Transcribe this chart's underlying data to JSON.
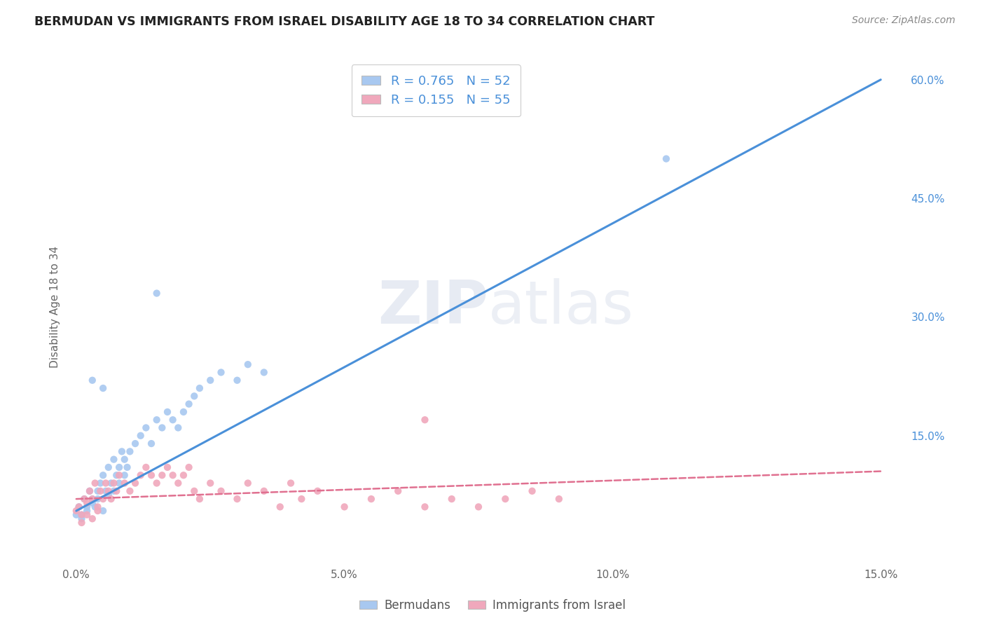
{
  "title": "BERMUDAN VS IMMIGRANTS FROM ISRAEL DISABILITY AGE 18 TO 34 CORRELATION CHART",
  "source": "Source: ZipAtlas.com",
  "ylabel": "Disability Age 18 to 34",
  "legend1_label": "R = 0.765   N = 52",
  "legend2_label": "R = 0.155   N = 55",
  "blue_color": "#A8C8F0",
  "pink_color": "#F0A8BC",
  "blue_line_color": "#4A90D9",
  "pink_line_color": "#E07090",
  "watermark": "ZIPatlas",
  "xlim": [
    -0.15,
    15.5
  ],
  "ylim": [
    -1.5,
    64.0
  ],
  "blue_line_x0": 0.0,
  "blue_line_y0": 5.5,
  "blue_line_x1": 15.0,
  "blue_line_y1": 60.0,
  "pink_line_x0": 0.0,
  "pink_line_y0": 7.0,
  "pink_line_x1": 15.0,
  "pink_line_y1": 10.5,
  "bermudans_x": [
    0.05,
    0.1,
    0.15,
    0.2,
    0.25,
    0.3,
    0.35,
    0.4,
    0.45,
    0.5,
    0.55,
    0.6,
    0.65,
    0.7,
    0.75,
    0.8,
    0.85,
    0.9,
    0.95,
    1.0,
    1.1,
    1.2,
    1.3,
    1.4,
    1.5,
    1.6,
    1.7,
    1.8,
    1.9,
    2.0,
    2.1,
    2.2,
    2.3,
    2.5,
    2.7,
    3.0,
    3.2,
    3.5,
    0.0,
    0.1,
    0.2,
    0.3,
    0.4,
    0.5,
    0.6,
    0.7,
    0.8,
    0.9,
    0.5,
    0.3,
    1.5,
    11.0
  ],
  "bermudans_y": [
    6.0,
    5.0,
    7.0,
    6.0,
    8.0,
    7.0,
    6.0,
    8.0,
    9.0,
    10.0,
    8.0,
    11.0,
    9.0,
    12.0,
    10.0,
    11.0,
    13.0,
    12.0,
    11.0,
    13.0,
    14.0,
    15.0,
    16.0,
    14.0,
    17.0,
    16.0,
    18.0,
    17.0,
    16.0,
    18.0,
    19.0,
    20.0,
    21.0,
    22.0,
    23.0,
    22.0,
    24.0,
    23.0,
    5.0,
    4.5,
    5.5,
    6.5,
    7.0,
    5.5,
    7.5,
    8.0,
    9.0,
    10.0,
    21.0,
    22.0,
    33.0,
    50.0
  ],
  "israel_x": [
    0.0,
    0.05,
    0.1,
    0.15,
    0.2,
    0.25,
    0.3,
    0.35,
    0.4,
    0.45,
    0.5,
    0.55,
    0.6,
    0.65,
    0.7,
    0.75,
    0.8,
    0.9,
    1.0,
    1.1,
    1.2,
    1.3,
    1.4,
    1.5,
    1.6,
    1.7,
    1.8,
    1.9,
    2.0,
    2.1,
    2.2,
    2.3,
    2.5,
    2.7,
    3.0,
    3.2,
    3.5,
    3.8,
    4.0,
    4.2,
    4.5,
    5.0,
    5.5,
    6.0,
    6.5,
    7.0,
    7.5,
    8.0,
    8.5,
    9.0,
    0.1,
    0.2,
    0.3,
    0.4,
    6.5
  ],
  "israel_y": [
    5.5,
    6.0,
    5.0,
    7.0,
    6.5,
    8.0,
    7.0,
    9.0,
    6.0,
    8.0,
    7.0,
    9.0,
    8.0,
    7.0,
    9.0,
    8.0,
    10.0,
    9.0,
    8.0,
    9.0,
    10.0,
    11.0,
    10.0,
    9.0,
    10.0,
    11.0,
    10.0,
    9.0,
    10.0,
    11.0,
    8.0,
    7.0,
    9.0,
    8.0,
    7.0,
    9.0,
    8.0,
    6.0,
    9.0,
    7.0,
    8.0,
    6.0,
    7.0,
    8.0,
    6.0,
    7.0,
    6.0,
    7.0,
    8.0,
    7.0,
    4.0,
    5.0,
    4.5,
    5.5,
    17.0
  ]
}
